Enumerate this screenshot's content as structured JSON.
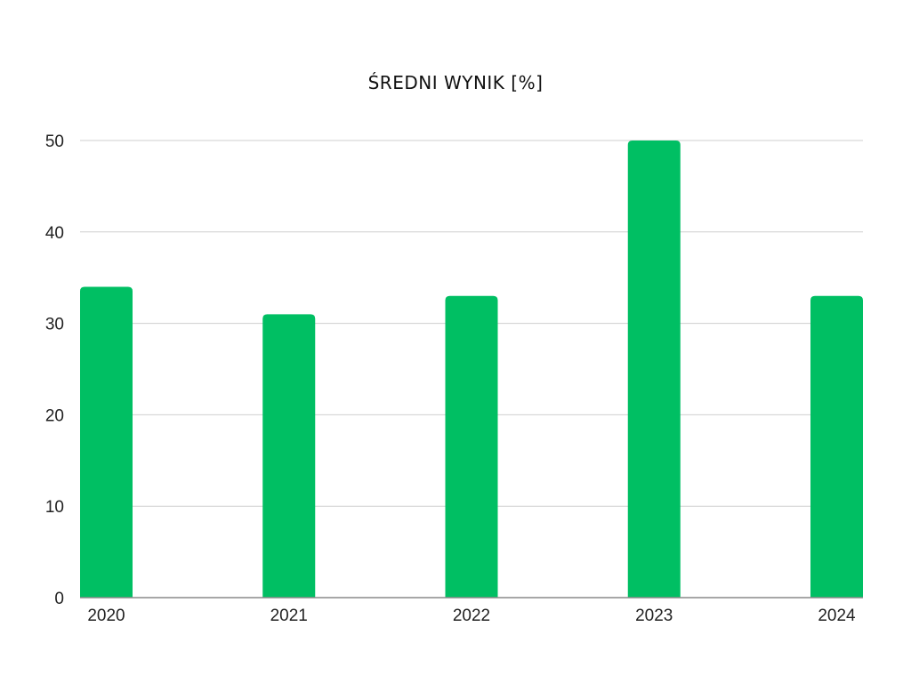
{
  "chart_data": {
    "type": "bar",
    "title": "ŚREDNI WYNIK [%]",
    "xlabel": "",
    "ylabel": "",
    "categories": [
      "2020",
      "2021",
      "2022",
      "2023",
      "2024"
    ],
    "values": [
      34,
      31,
      33,
      50,
      33
    ],
    "ylim": [
      0,
      50
    ],
    "yticks": [
      0,
      10,
      20,
      30,
      40,
      50
    ],
    "grid": true,
    "legend": "none",
    "bar_color": "#00bf63"
  }
}
